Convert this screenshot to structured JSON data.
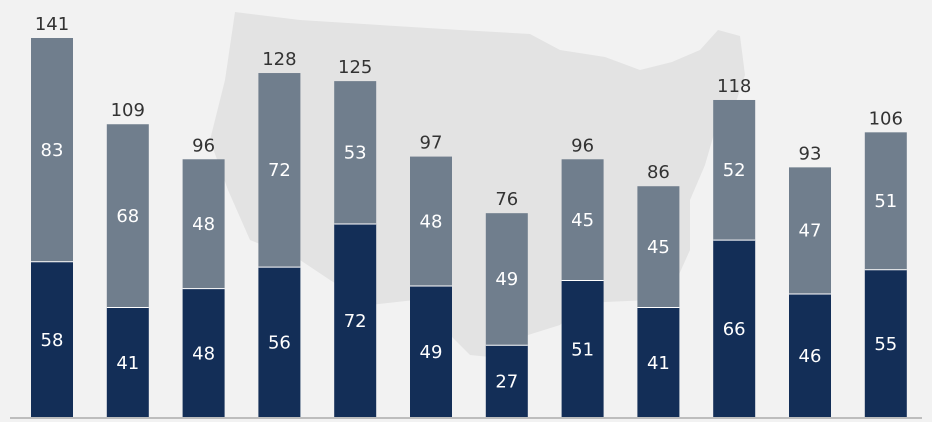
{
  "colors": {
    "background": "#f2f2f2",
    "map": "#e3e3e3",
    "bottom_series": "#132e57",
    "top_series": "#707e8d",
    "total_label": "#333333",
    "inner_label": "#ffffff"
  },
  "chart_data": {
    "type": "bar",
    "stacked": true,
    "title": "",
    "xlabel": "",
    "ylabel": "",
    "ylim": [
      0,
      141
    ],
    "grid": false,
    "legend": "none",
    "categories": [
      "",
      "",
      "",
      "",
      "",
      "",
      "",
      "",
      "",
      "",
      "",
      ""
    ],
    "series": [
      {
        "values": [
          58,
          41,
          48,
          56,
          72,
          49,
          27,
          51,
          41,
          66,
          46,
          55
        ],
        "color": "#132e57"
      },
      {
        "values": [
          83,
          68,
          48,
          72,
          53,
          48,
          49,
          45,
          45,
          52,
          47,
          51
        ],
        "color": "#707e8d"
      }
    ],
    "totals": [
      141,
      109,
      96,
      128,
      125,
      97,
      76,
      96,
      86,
      118,
      93,
      106
    ]
  }
}
